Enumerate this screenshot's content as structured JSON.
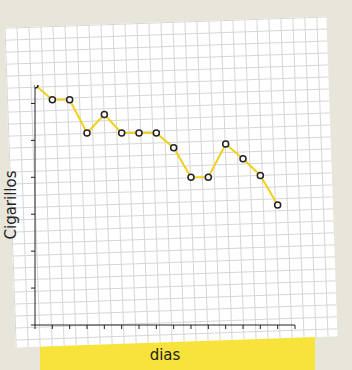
{
  "chart_data": {
    "type": "line",
    "x_label": "dias",
    "y_label": "Cigarillos",
    "x": [
      0,
      1,
      2,
      3,
      4,
      5,
      6,
      7,
      8,
      9,
      10,
      11,
      12,
      13,
      14
    ],
    "values": [
      6.5,
      6.1,
      6.1,
      5.2,
      5.7,
      5.2,
      5.2,
      5.2,
      4.8,
      4.0,
      4.0,
      4.9,
      4.5,
      4.05,
      3.25
    ],
    "color": "#f2cf1d",
    "marker": "circle",
    "line_style": "solid",
    "xlim": [
      0,
      15
    ],
    "xticks": [
      0,
      1,
      2,
      3,
      4,
      5,
      6,
      7,
      8,
      9,
      10,
      11,
      12,
      13,
      14,
      15
    ],
    "ylim": [
      0,
      6.5
    ],
    "yticks": [
      0,
      1,
      2,
      3,
      4,
      5,
      6
    ],
    "grid": false,
    "tick_labels": false
  }
}
